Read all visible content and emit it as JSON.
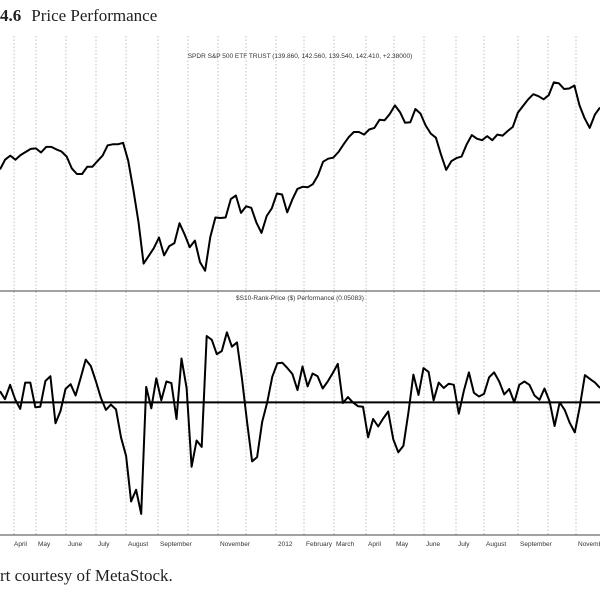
{
  "figure": {
    "number": "4.6",
    "title": "Price Performance",
    "caption": "rt courtesy of MetaStock."
  },
  "chart_data": [
    {
      "type": "line",
      "title": "SPDR S&P 500 ETF TRUST (139.860, 142.560, 139.540, 142.410, +2.38000)",
      "x_labels": [
        "April",
        "May",
        "June",
        "July",
        "August",
        "September",
        "November",
        "2012",
        "February",
        "March",
        "April",
        "May",
        "June",
        "July",
        "August",
        "September",
        "November"
      ],
      "series": [
        {
          "values": [
            129.8,
            131.7,
            132.5,
            131.7,
            132.6,
            133.2,
            133.8,
            133.9,
            133.1,
            134.2,
            134.2,
            133.7,
            133.3,
            132.3,
            130.0,
            128.9,
            128.9,
            130.3,
            130.3,
            131.4,
            132.5,
            134.5,
            134.7,
            134.7,
            135.0,
            131.5,
            125.9,
            119.5,
            111.4,
            112.9,
            114.4,
            116.5,
            113.0,
            114.8,
            115.4,
            119.3,
            117.1,
            114.6,
            115.9,
            111.7,
            110.0,
            116.6,
            120.4,
            120.3,
            120.4,
            124.0,
            124.7,
            121.3,
            122.6,
            122.3,
            119.4,
            117.4,
            120.7,
            122.2,
            125.1,
            124.9,
            121.4,
            123.9,
            126.0,
            126.4,
            126.3,
            126.9,
            128.6,
            131.3,
            131.9,
            132.1,
            133.2,
            134.7,
            136.1,
            137.1,
            137.1,
            136.6,
            137.6,
            137.9,
            139.5,
            139.4,
            140.6,
            142.3,
            141.0,
            138.9,
            139.0,
            141.6,
            140.7,
            138.4,
            136.8,
            136.0,
            132.7,
            129.7,
            131.4,
            132.0,
            132.3,
            134.7,
            136.5,
            135.8,
            135.5,
            136.3,
            135.5,
            136.6,
            136.4,
            137.3,
            138.1,
            140.9,
            142.2,
            143.5,
            144.5,
            144.1,
            143.5,
            144.3,
            146.8,
            146.6,
            145.5,
            145.6,
            146.2,
            142.3,
            139.8,
            137.9,
            140.5,
            141.9
          ]
        }
      ]
    },
    {
      "type": "line",
      "title": "$S10-Rank-Price ($) Performance (0.05083)",
      "x_labels": [
        "April",
        "May",
        "June",
        "July",
        "August",
        "September",
        "November",
        "2012",
        "February",
        "March",
        "April",
        "May",
        "June",
        "July",
        "August",
        "September",
        "November"
      ],
      "baseline": 0,
      "series": [
        {
          "values": [
            2.1,
            0.6,
            3.3,
            0.6,
            -1.2,
            3.7,
            3.7,
            -0.9,
            -0.8,
            4.0,
            4.9,
            -3.9,
            -1.6,
            2.5,
            3.4,
            1.3,
            4.6,
            8.0,
            6.8,
            4.0,
            0.9,
            -1.4,
            -0.4,
            -1.3,
            -6.5,
            -10.0,
            -18.5,
            -16.3,
            -20.8,
            2.9,
            -1.1,
            4.5,
            0.4,
            3.9,
            3.6,
            -3.1,
            8.2,
            2.7,
            -12.0,
            -7.1,
            -8.3,
            12.4,
            11.7,
            9.0,
            9.6,
            13.1,
            10.4,
            11.2,
            4.4,
            -3.7,
            -11.0,
            -10.2,
            -3.6,
            0.0,
            4.8,
            7.3,
            7.4,
            6.4,
            5.3,
            2.3,
            6.7,
            3.0,
            5.4,
            4.9,
            2.6,
            3.9,
            5.5,
            7.2,
            -0.1,
            1.0,
            0.0,
            -0.7,
            -0.8,
            -6.5,
            -3.1,
            -4.5,
            -3.0,
            -1.7,
            -6.9,
            -9.3,
            -8.1,
            -1.9,
            5.2,
            1.4,
            6.4,
            5.7,
            0.4,
            3.7,
            2.7,
            3.5,
            3.3,
            -2.1,
            2.2,
            5.6,
            1.8,
            1.1,
            1.6,
            4.7,
            5.6,
            3.9,
            1.5,
            2.5,
            0.0,
            3.3,
            3.9,
            3.3,
            1.3,
            0.5,
            2.6,
            0.2,
            -4.4,
            0.0,
            -1.4,
            -3.8,
            -5.6,
            -0.8,
            5.1,
            4.4,
            3.7,
            2.7
          ]
        }
      ]
    }
  ]
}
